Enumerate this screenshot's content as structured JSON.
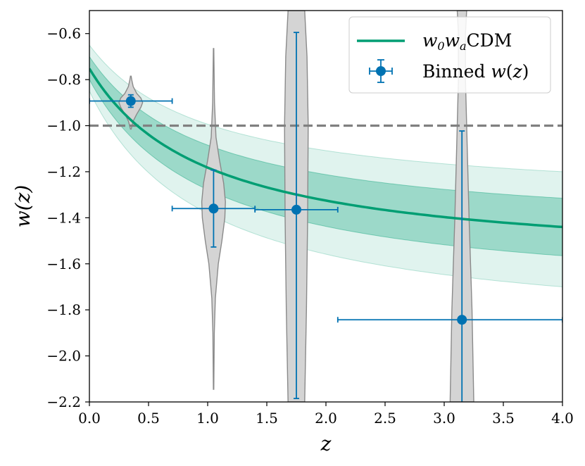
{
  "chart_data": {
    "type": "line",
    "xlabel": "z",
    "ylabel": "w(z)",
    "xlim": [
      0.0,
      4.0
    ],
    "ylim": [
      -2.2,
      -0.5
    ],
    "xticks": [
      "0.0",
      "0.5",
      "1.0",
      "1.5",
      "2.0",
      "2.5",
      "3.0",
      "3.5",
      "4.0"
    ],
    "yticks": [
      "−2.2",
      "−2.0",
      "−1.8",
      "−1.6",
      "−1.4",
      "−1.2",
      "−1.0",
      "−0.8",
      "−0.6"
    ],
    "grid": false,
    "legend_position": "top-right",
    "reference_line": {
      "y": -1.0,
      "style": "dashed",
      "color": "#808080"
    },
    "series": [
      {
        "name": "w0waCDM",
        "kind": "curve",
        "color": "#009e73",
        "w0": -0.752,
        "wa": -0.86,
        "band_1sigma": {
          "lower_at_z0": -0.8,
          "upper_at_z0": -0.7,
          "lower_at_z4": -1.565,
          "upper_at_z4": -1.315
        },
        "band_2sigma": {
          "lower_at_z0": -0.85,
          "upper_at_z0": -0.65,
          "lower_at_z4": -1.7,
          "upper_at_z4": -1.2
        }
      },
      {
        "name": "Binned w(z)",
        "kind": "errorbar",
        "color": "#0072b2",
        "points": [
          {
            "x": 0.35,
            "y": -0.893,
            "xerr_low": 0.35,
            "xerr_high": 0.35,
            "yerr_low": 0.027,
            "yerr_high": 0.027
          },
          {
            "x": 1.05,
            "y": -1.36,
            "xerr_low": 0.35,
            "xerr_high": 0.35,
            "yerr_low": 0.167,
            "yerr_high": 0.167
          },
          {
            "x": 1.75,
            "y": -1.365,
            "xerr_low": 0.35,
            "xerr_high": 0.35,
            "yerr_low": 0.82,
            "yerr_high": 0.77
          },
          {
            "x": 3.15,
            "y": -1.843,
            "xerr_low": 1.05,
            "xerr_high": 0.85,
            "yerr_low": 0.36,
            "yerr_high": 0.82
          }
        ]
      }
    ],
    "violins": [
      {
        "x": 0.35,
        "min": -1.015,
        "max": -0.785,
        "half_width": 0.1,
        "profile": [
          [
            -1.015,
            0.003
          ],
          [
            -0.98,
            0.02
          ],
          [
            -0.95,
            0.05
          ],
          [
            -0.92,
            0.085
          ],
          [
            -0.9,
            0.1
          ],
          [
            -0.88,
            0.085
          ],
          [
            -0.86,
            0.05
          ],
          [
            -0.83,
            0.02
          ],
          [
            -0.8,
            0.008
          ],
          [
            -0.785,
            0.003
          ]
        ]
      },
      {
        "x": 1.05,
        "min": -2.145,
        "max": -0.665,
        "half_width": 0.1,
        "profile": [
          [
            -2.145,
            0.002
          ],
          [
            -1.9,
            0.006
          ],
          [
            -1.75,
            0.015
          ],
          [
            -1.6,
            0.04
          ],
          [
            -1.5,
            0.07
          ],
          [
            -1.4,
            0.095
          ],
          [
            -1.33,
            0.1
          ],
          [
            -1.25,
            0.085
          ],
          [
            -1.15,
            0.05
          ],
          [
            -1.05,
            0.02
          ],
          [
            -0.9,
            0.008
          ],
          [
            -0.665,
            0.002
          ]
        ]
      },
      {
        "x": 1.75,
        "min": -2.2,
        "max": -0.5,
        "half_width": 0.1,
        "profile": [
          [
            -2.2,
            0.07
          ],
          [
            -1.8,
            0.085
          ],
          [
            -1.4,
            0.095
          ],
          [
            -1.0,
            0.1
          ],
          [
            -0.7,
            0.09
          ],
          [
            -0.5,
            0.07
          ]
        ]
      },
      {
        "x": 3.15,
        "min": -2.2,
        "max": -0.5,
        "half_width": 0.1,
        "profile": [
          [
            -2.2,
            0.1
          ],
          [
            -1.8,
            0.085
          ],
          [
            -1.4,
            0.06
          ],
          [
            -1.0,
            0.04
          ],
          [
            -0.8,
            0.03
          ],
          [
            -0.6,
            0.03
          ],
          [
            -0.5,
            0.04
          ]
        ]
      }
    ],
    "colors": {
      "curve": "#009e73",
      "points": "#0072b2",
      "violin_fill": "#d4d4d4",
      "violin_edge": "#8a8a8a"
    }
  }
}
